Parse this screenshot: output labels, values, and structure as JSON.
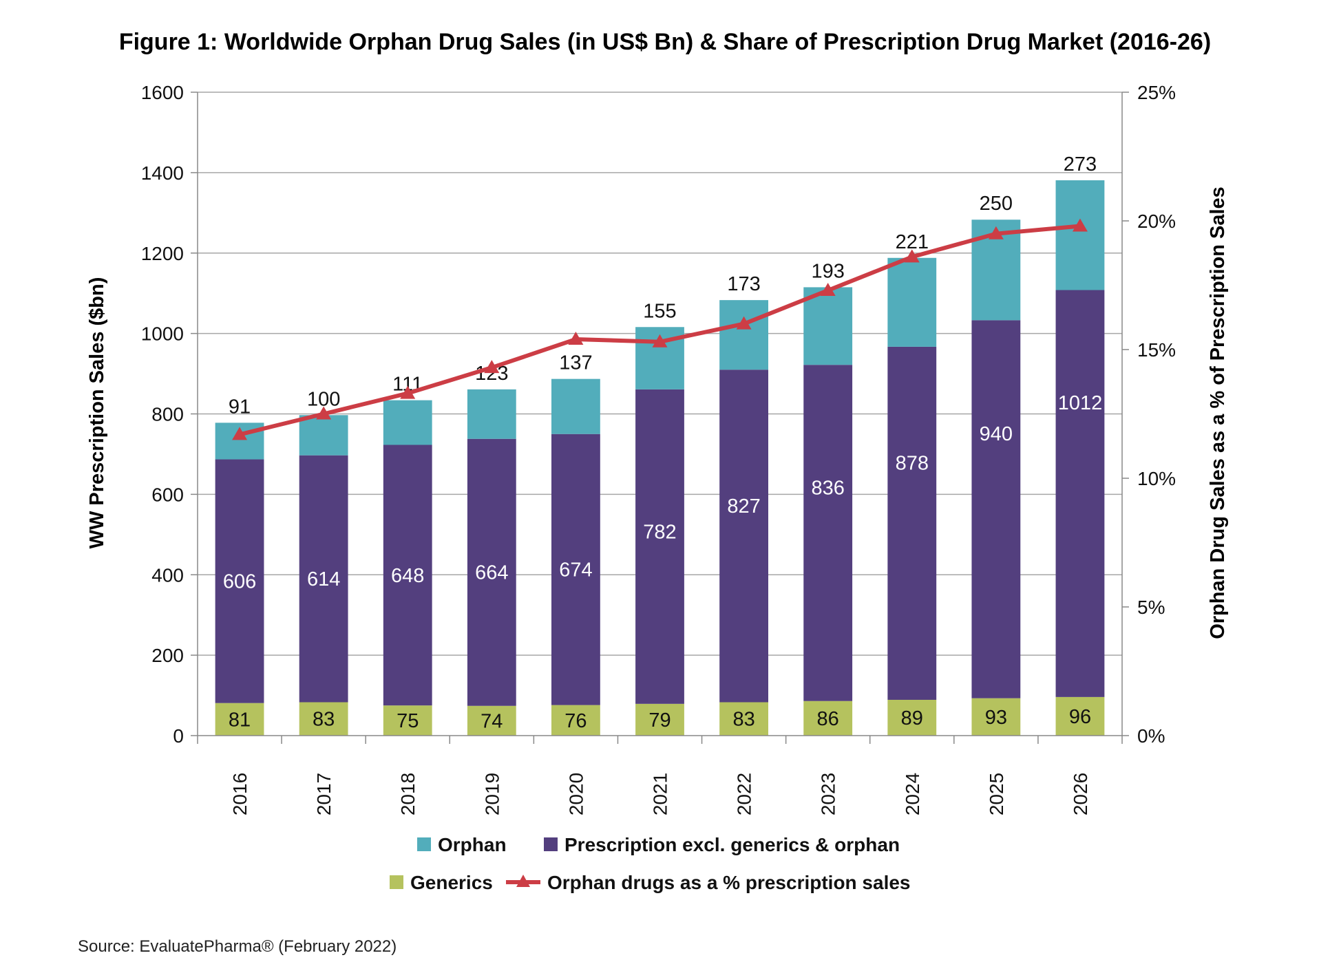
{
  "chart_data": {
    "type": "bar",
    "stacked": true,
    "title": "Figure 1: Worldwide Orphan Drug Sales (in US$ Bn) & Share of Prescription Drug Market (2016-26)",
    "ylabel": "WW Prescription Sales ($bn)",
    "y2label": "Orphan Drug  Sales as a % of Prescription  Sales",
    "ylim": [
      0,
      1600
    ],
    "y2lim": [
      0,
      25
    ],
    "yticks": [
      "0",
      "200",
      "400",
      "600",
      "800",
      "1000",
      "1200",
      "1400",
      "1600"
    ],
    "y2ticks": [
      "0%",
      "5%",
      "10%",
      "15%",
      "20%",
      "25%"
    ],
    "grid": true,
    "legend_placement": "bottom",
    "categories": [
      "2016",
      "2017",
      "2018",
      "2019",
      "2020",
      "2021",
      "2022",
      "2023",
      "2024",
      "2025",
      "2026"
    ],
    "series": [
      {
        "name": "Generics",
        "color": "#b5c25e",
        "values": [
          81,
          83,
          75,
          74,
          76,
          79,
          83,
          86,
          89,
          93,
          96
        ]
      },
      {
        "name": "Prescription excl. generics & orphan",
        "color": "#533f7e",
        "values": [
          606,
          614,
          648,
          664,
          674,
          782,
          827,
          836,
          878,
          940,
          1012
        ]
      },
      {
        "name": "Orphan",
        "color": "#52adbb",
        "values": [
          91,
          100,
          111,
          123,
          137,
          155,
          173,
          193,
          221,
          250,
          273
        ]
      },
      {
        "name": "Orphan drugs as a % prescription  sales",
        "type": "line",
        "axis": "right",
        "color": "#cc3d45",
        "values": [
          11.7,
          12.5,
          13.3,
          14.3,
          15.4,
          15.3,
          16.0,
          17.3,
          18.6,
          19.5,
          19.8
        ]
      }
    ],
    "legend": [
      {
        "label": "Orphan",
        "color": "#52adbb",
        "kind": "box"
      },
      {
        "label": "Prescription excl. generics & orphan",
        "color": "#533f7e",
        "kind": "box"
      },
      {
        "label": "Generics",
        "color": "#b5c25e",
        "kind": "box"
      },
      {
        "label": "Orphan drugs as a % prescription  sales",
        "color": "#cc3d45",
        "kind": "line"
      }
    ],
    "source": "Source: EvaluatePharma® (February 2022)"
  }
}
